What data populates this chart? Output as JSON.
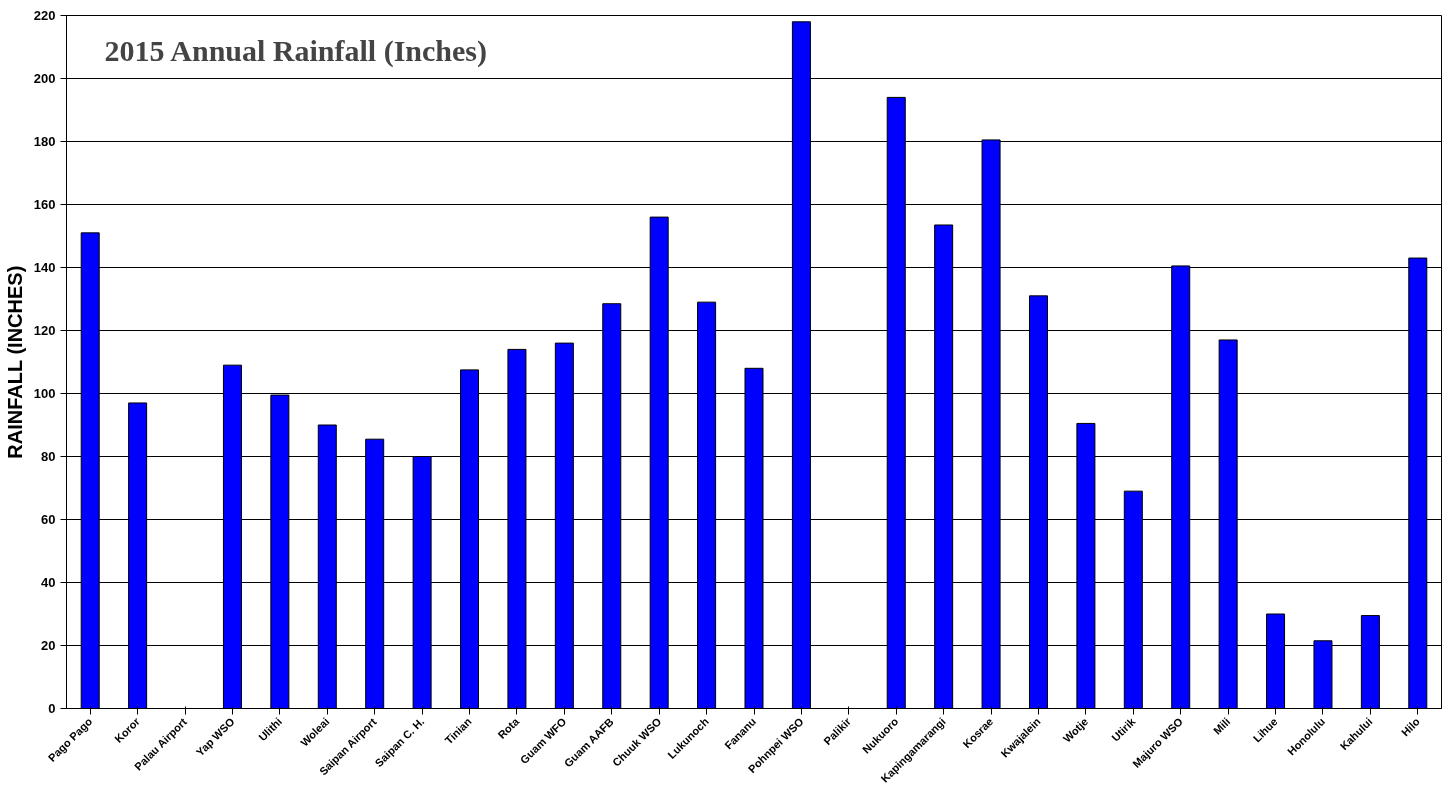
{
  "chart_data": {
    "type": "bar",
    "title": "2015 Annual Rainfall (Inches)",
    "ylabel": "RAINFALL (INCHES)",
    "categories": [
      "Pago Pago",
      "Koror",
      "Palau Airport",
      "Yap WSO",
      "Ulithi",
      "Woleai",
      "Saipan Airport",
      "Saipan C. H.",
      "Tinian",
      "Rota",
      "Guam WFO",
      "Guam AAFB",
      "Chuuk WSO",
      "Lukunoch",
      "Fananu",
      "Pohnpei WSO",
      "Palikir",
      "Nukuoro",
      "Kapingamarangi",
      "Kosrae",
      "Kwajalein",
      "Wotje",
      "Utirik",
      "Majuro WSO",
      "Mili",
      "Lihue",
      "Honolulu",
      "Kahului",
      "Hilo"
    ],
    "values": [
      151,
      97,
      null,
      109,
      99.5,
      90,
      85.5,
      80,
      107.5,
      114,
      116,
      128.5,
      156,
      129,
      108,
      218,
      null,
      194,
      153.5,
      180.5,
      131,
      90.5,
      69,
      140.5,
      117,
      30,
      21.5,
      29.5,
      143
    ],
    "color": "#0000ff",
    "ylim": [
      0,
      220
    ],
    "yticks": [
      0,
      20,
      40,
      60,
      80,
      100,
      120,
      140,
      160,
      180,
      200,
      220
    ],
    "grid": "y"
  }
}
